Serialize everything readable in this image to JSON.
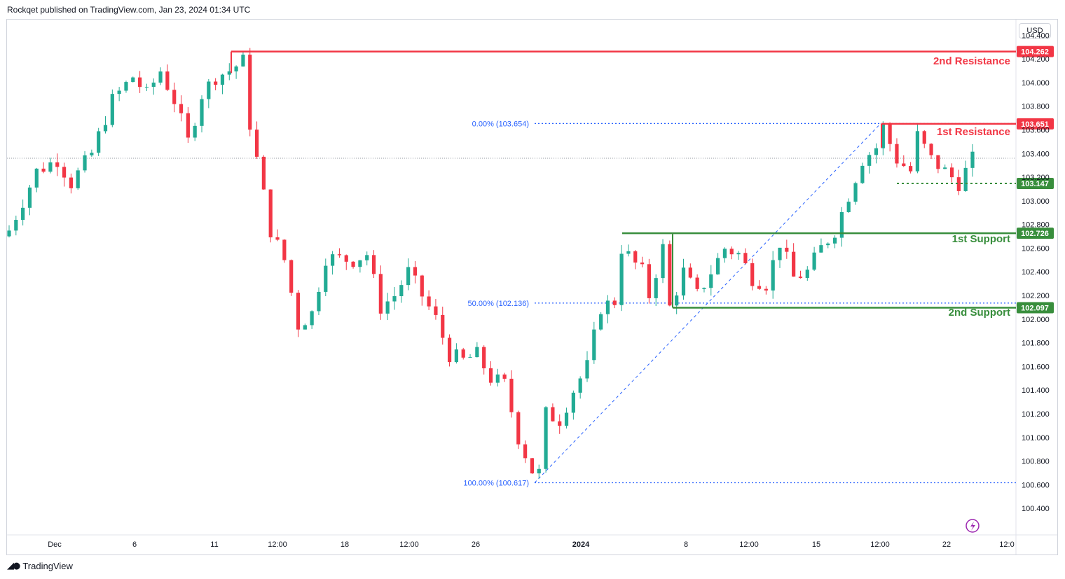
{
  "header": {
    "publisher_line": "Rockqet published on TradingView.com, Jan 23, 2024 01:34 UTC"
  },
  "toolbar": {
    "currency_label": "USD"
  },
  "brand": {
    "name": "TradingView"
  },
  "colors": {
    "up": "#22ab94",
    "down": "#f23645",
    "resistance": "#f23645",
    "support": "#388e3c",
    "fib": "#2962ff"
  },
  "chart_data": {
    "type": "candlestick",
    "y_axis": {
      "range": [
        100.2,
        104.52
      ],
      "ticks": [
        "104.400",
        "104.200",
        "104.000",
        "103.800",
        "103.600",
        "103.400",
        "103.200",
        "103.000",
        "102.800",
        "102.600",
        "102.400",
        "102.200",
        "102.000",
        "101.800",
        "101.600",
        "101.400",
        "101.200",
        "101.000",
        "100.800",
        "100.600",
        "100.400"
      ]
    },
    "x_axis": {
      "ticks": [
        "Dec",
        "6",
        "11",
        "12:00",
        "18",
        "12:00",
        "26",
        "2024",
        "8",
        "12:00",
        "15",
        "12:00",
        "22",
        "12:0"
      ]
    },
    "levels": [
      {
        "name": "2nd Resistance",
        "value": "104.262",
        "kind": "resistance"
      },
      {
        "name": "1st Resistance",
        "value": "103.651",
        "kind": "resistance"
      },
      {
        "name": "",
        "value": "103.147",
        "kind": "support"
      },
      {
        "name": "1st Support",
        "value": "102.726",
        "kind": "support"
      },
      {
        "name": "2nd Support",
        "value": "102.097",
        "kind": "support"
      }
    ],
    "fibonacci": [
      {
        "label": "0.00% (103.654)",
        "value": 103.654
      },
      {
        "label": "50.00% (102.136)",
        "value": 102.136
      },
      {
        "label": "100.00% (100.617)",
        "value": 100.617
      }
    ],
    "current_price": 103.36,
    "path": [
      [
        0,
        102.75
      ],
      [
        4,
        103.25
      ],
      [
        7,
        103.35
      ],
      [
        9,
        103.15
      ],
      [
        12,
        103.4
      ],
      [
        15,
        103.85
      ],
      [
        18,
        104.05
      ],
      [
        20,
        103.9
      ],
      [
        22,
        104.1
      ],
      [
        24,
        103.85
      ],
      [
        26,
        103.5
      ],
      [
        28,
        103.9
      ],
      [
        30,
        104.05
      ],
      [
        32,
        104.1
      ],
      [
        34,
        104.18
      ],
      [
        35,
        103.65
      ],
      [
        38,
        102.75
      ],
      [
        40,
        102.5
      ],
      [
        42,
        101.95
      ],
      [
        44,
        102.05
      ],
      [
        46,
        102.52
      ],
      [
        50,
        102.5
      ],
      [
        52,
        102.55
      ],
      [
        54,
        102.1
      ],
      [
        56,
        102.2
      ],
      [
        58,
        102.4
      ],
      [
        60,
        102.2
      ],
      [
        62,
        102.0
      ],
      [
        64,
        101.7
      ],
      [
        66,
        101.65
      ],
      [
        68,
        101.7
      ],
      [
        70,
        101.5
      ],
      [
        72,
        101.45
      ],
      [
        74,
        101.0
      ],
      [
        76,
        100.72
      ],
      [
        77,
        100.7
      ],
      [
        78,
        101.2
      ],
      [
        80,
        101.15
      ],
      [
        82,
        101.4
      ],
      [
        84,
        101.6
      ],
      [
        86,
        102.1
      ],
      [
        88,
        102.15
      ],
      [
        89,
        102.6
      ],
      [
        92,
        102.4
      ],
      [
        93,
        102.2
      ],
      [
        95,
        102.6
      ],
      [
        96,
        102.1
      ],
      [
        98,
        102.4
      ],
      [
        100,
        102.2
      ],
      [
        102,
        102.4
      ],
      [
        104,
        102.6
      ],
      [
        106,
        102.55
      ],
      [
        108,
        102.35
      ],
      [
        110,
        102.3
      ],
      [
        112,
        102.65
      ],
      [
        114,
        102.35
      ],
      [
        116,
        102.4
      ],
      [
        118,
        102.6
      ],
      [
        120,
        102.75
      ],
      [
        122,
        103.05
      ],
      [
        124,
        103.35
      ],
      [
        126,
        103.45
      ],
      [
        127,
        103.62
      ],
      [
        129,
        103.35
      ],
      [
        131,
        103.25
      ],
      [
        132,
        103.55
      ],
      [
        134,
        103.35
      ],
      [
        136,
        103.25
      ],
      [
        138,
        103.15
      ],
      [
        140,
        103.35
      ]
    ]
  }
}
